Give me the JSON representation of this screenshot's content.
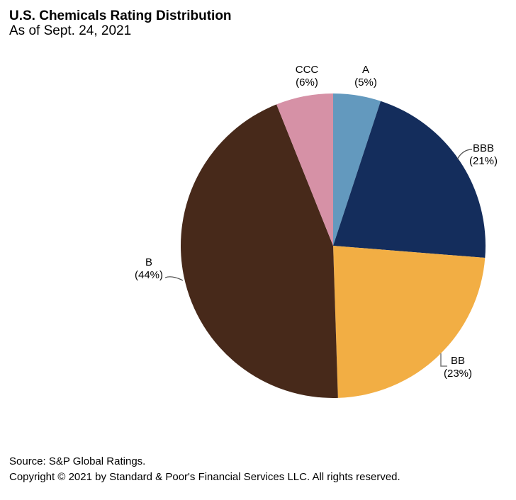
{
  "header": {
    "title": "U.S. Chemicals Rating Distribution",
    "subtitle": "As of Sept. 24, 2021"
  },
  "chart_data": {
    "type": "pie",
    "title": "U.S. Chemicals Rating Distribution",
    "subtitle": "As of Sept. 24, 2021",
    "unit": "percent",
    "direction": "clockwise",
    "start_angle_deg": 0,
    "legend_position": "none",
    "slices": [
      {
        "label": "A",
        "value": 5,
        "pct_text": "(5%)",
        "color": "#6399BE"
      },
      {
        "label": "BBB",
        "value": 21,
        "pct_text": "(21%)",
        "color": "#142D5C"
      },
      {
        "label": "BB",
        "value": 23,
        "pct_text": "(23%)",
        "color": "#F2AE44"
      },
      {
        "label": "B",
        "value": 44,
        "pct_text": "(44%)",
        "color": "#47291A"
      },
      {
        "label": "CCC",
        "value": 6,
        "pct_text": "(6%)",
        "color": "#D691A6"
      }
    ]
  },
  "footer": {
    "source": "Source: S&P Global Ratings.",
    "copyright": "Copyright © 2021 by Standard & Poor's Financial Services LLC. All rights reserved."
  }
}
